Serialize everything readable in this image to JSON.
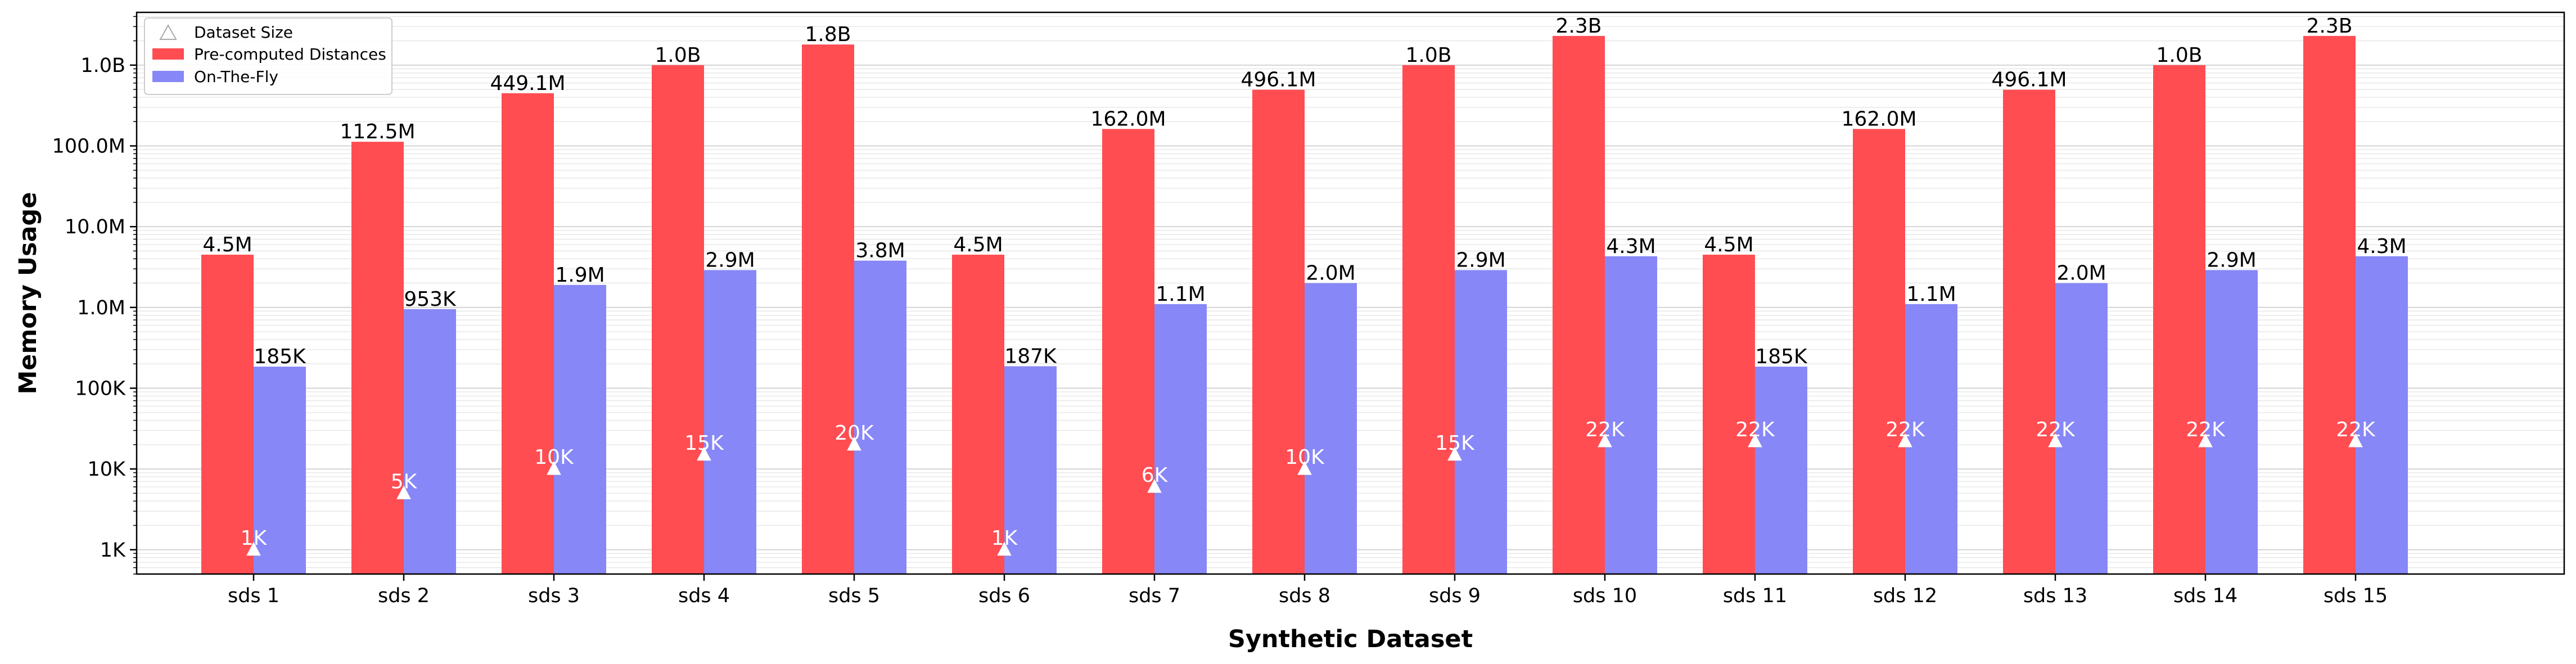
{
  "chart_data": {
    "type": "bar",
    "title": "",
    "xlabel": "Synthetic Dataset",
    "ylabel": "Memory Usage",
    "yscale": "log",
    "ylim": [
      500,
      4500000000
    ],
    "grid": "y-minor-and-major",
    "legend_position": "top-left",
    "categories": [
      "sds 1",
      "sds 2",
      "sds 3",
      "sds 4",
      "sds 5",
      "sds 6",
      "sds 7",
      "sds 8",
      "sds 9",
      "sds 10",
      "sds 11",
      "sds 12",
      "sds 13",
      "sds 14",
      "sds 15"
    ],
    "y_ticks": [
      {
        "value": 1000,
        "label": "1K"
      },
      {
        "value": 10000,
        "label": "10K"
      },
      {
        "value": 100000,
        "label": "100K"
      },
      {
        "value": 1000000,
        "label": "1.0M"
      },
      {
        "value": 10000000,
        "label": "10.0M"
      },
      {
        "value": 100000000,
        "label": "100.0M"
      },
      {
        "value": 1000000000,
        "label": "1.0B"
      }
    ],
    "series": [
      {
        "name": "Pre-computed Distances",
        "color": "#ff4d52",
        "values": [
          4500000,
          112500000,
          449100000,
          1000000000,
          1800000000,
          4500000,
          162000000,
          496100000,
          1000000000,
          2300000000,
          4500000,
          162000000,
          496100000,
          1000000000,
          2300000000
        ],
        "labels": [
          "4.5M",
          "112.5M",
          "449.1M",
          "1.0B",
          "1.8B",
          "4.5M",
          "162.0M",
          "496.1M",
          "1.0B",
          "2.3B",
          "4.5M",
          "162.0M",
          "496.1M",
          "1.0B",
          "2.3B"
        ]
      },
      {
        "name": "On-The-Fly",
        "color": "#8787f7",
        "values": [
          185000,
          953000,
          1900000,
          2900000,
          3800000,
          187000,
          1100000,
          2000000,
          2900000,
          4300000,
          185000,
          1100000,
          2000000,
          2900000,
          4300000
        ],
        "labels": [
          "185K",
          "953K",
          "1.9M",
          "2.9M",
          "3.8M",
          "187K",
          "1.1M",
          "2.0M",
          "2.9M",
          "4.3M",
          "185K",
          "1.1M",
          "2.0M",
          "2.9M",
          "4.3M"
        ]
      }
    ],
    "dataset_size": {
      "name": "Dataset Size",
      "marker": "triangle",
      "values": [
        1000,
        5000,
        10000,
        15000,
        20000,
        1000,
        6000,
        10000,
        15000,
        22000,
        22000,
        22000,
        22000,
        22000,
        22000
      ],
      "labels": [
        "1K",
        "5K",
        "10K",
        "15K",
        "20K",
        "1K",
        "6K",
        "10K",
        "15K",
        "22K",
        "22K",
        "22K",
        "22K",
        "22K",
        "22K"
      ]
    }
  }
}
